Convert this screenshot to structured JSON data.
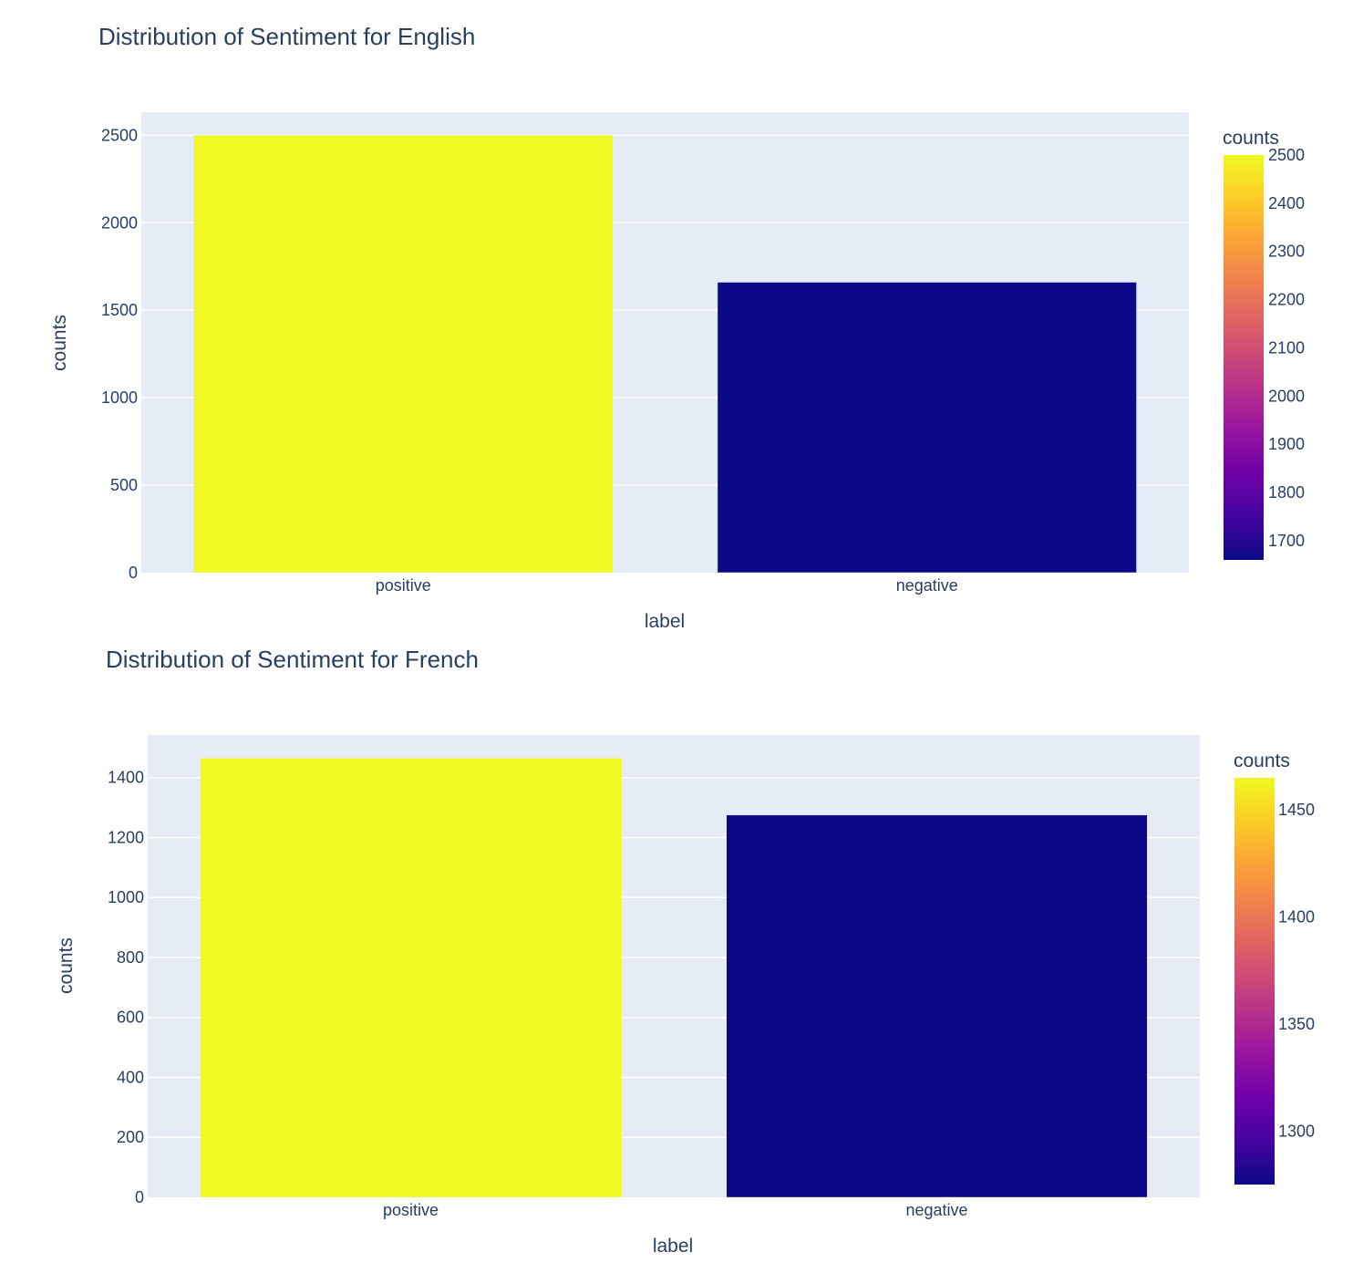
{
  "colors": {
    "plot_bg": "#e5ecf6",
    "grid": "#ffffff",
    "text": "#2a3f5f",
    "colorscale": [
      "#0d0887",
      "#46039f",
      "#7201a8",
      "#9c179e",
      "#bd3786",
      "#d8576b",
      "#ed7953",
      "#fb9f3a",
      "#fdca26",
      "#f0f921"
    ]
  },
  "chart_data": [
    {
      "type": "bar",
      "title": "Distribution of Sentiment for English",
      "xlabel": "label",
      "ylabel": "counts",
      "categories": [
        "positive",
        "negative"
      ],
      "values": [
        2500,
        1660
      ],
      "ylim": [
        0,
        2632
      ],
      "yticks": [
        0,
        500,
        1000,
        1500,
        2000,
        2500
      ],
      "grid": true,
      "legend": "none",
      "colorbar": {
        "title": "counts",
        "range": [
          1660,
          2500
        ],
        "ticks": [
          1700,
          1800,
          1900,
          2000,
          2100,
          2200,
          2300,
          2400,
          2500
        ],
        "placement": "right"
      }
    },
    {
      "type": "bar",
      "title": "Distribution of Sentiment for French",
      "xlabel": "label",
      "ylabel": "counts",
      "categories": [
        "positive",
        "negative"
      ],
      "values": [
        1465,
        1275
      ],
      "ylim": [
        0,
        1542
      ],
      "yticks": [
        0,
        200,
        400,
        600,
        800,
        1000,
        1200,
        1400
      ],
      "grid": true,
      "legend": "none",
      "colorbar": {
        "title": "counts",
        "range": [
          1275,
          1465
        ],
        "ticks": [
          1300,
          1350,
          1400,
          1450
        ],
        "placement": "right"
      }
    }
  ]
}
